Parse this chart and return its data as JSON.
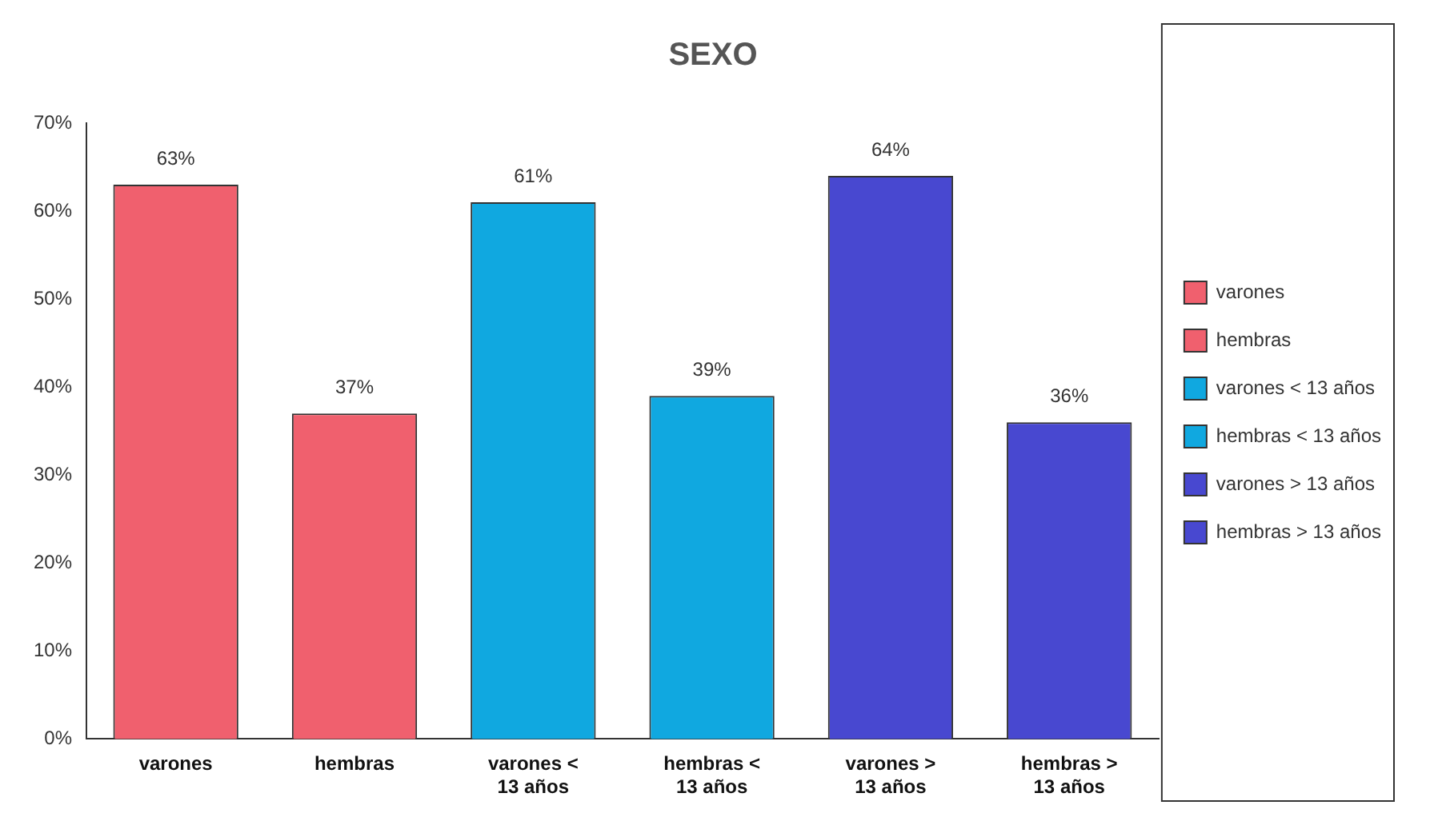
{
  "chart_data": {
    "type": "bar",
    "title": "SEXO",
    "categories": [
      "varones",
      "hembras",
      "varones < 13 años",
      "hembras < 13 años",
      "varones > 13 años",
      "hembras > 13 años"
    ],
    "series": [
      {
        "name": "varones",
        "color": "#f0606e",
        "values": [
          63,
          null,
          null,
          null,
          null,
          null
        ],
        "value_labels": [
          "63%",
          null,
          null,
          null,
          null,
          null
        ]
      },
      {
        "name": "hembras",
        "color": "#f0606e",
        "values": [
          null,
          37,
          null,
          null,
          null,
          null
        ],
        "value_labels": [
          null,
          "37%",
          null,
          null,
          null,
          null
        ]
      },
      {
        "name": "varones < 13 años",
        "color": "#10a8e0",
        "values": [
          null,
          null,
          61,
          null,
          null,
          null
        ],
        "value_labels": [
          null,
          null,
          "61%",
          null,
          null,
          null
        ]
      },
      {
        "name": "hembras < 13 años",
        "color": "#10a8e0",
        "values": [
          null,
          null,
          null,
          39,
          null,
          null
        ],
        "value_labels": [
          null,
          null,
          null,
          "39%",
          null,
          null
        ]
      },
      {
        "name": "varones > 13 años",
        "color": "#4848d0",
        "values": [
          null,
          null,
          null,
          null,
          64,
          null
        ],
        "value_labels": [
          null,
          null,
          null,
          null,
          "64%",
          null
        ]
      },
      {
        "name": "hembras > 13 años",
        "color": "#4848d0",
        "values": [
          null,
          null,
          null,
          null,
          null,
          36
        ],
        "value_labels": [
          null,
          null,
          null,
          null,
          null,
          "36%"
        ]
      }
    ],
    "ylim": [
      0,
      70
    ],
    "yticks": [
      {
        "value": 0,
        "label": "0%"
      },
      {
        "value": 10,
        "label": "10%"
      },
      {
        "value": 20,
        "label": "20%"
      },
      {
        "value": 30,
        "label": "30%"
      },
      {
        "value": 40,
        "label": "40%"
      },
      {
        "value": 50,
        "label": "50%"
      },
      {
        "value": 60,
        "label": "60%"
      },
      {
        "value": 70,
        "label": "70%"
      }
    ],
    "grid": false,
    "legend": "right"
  }
}
